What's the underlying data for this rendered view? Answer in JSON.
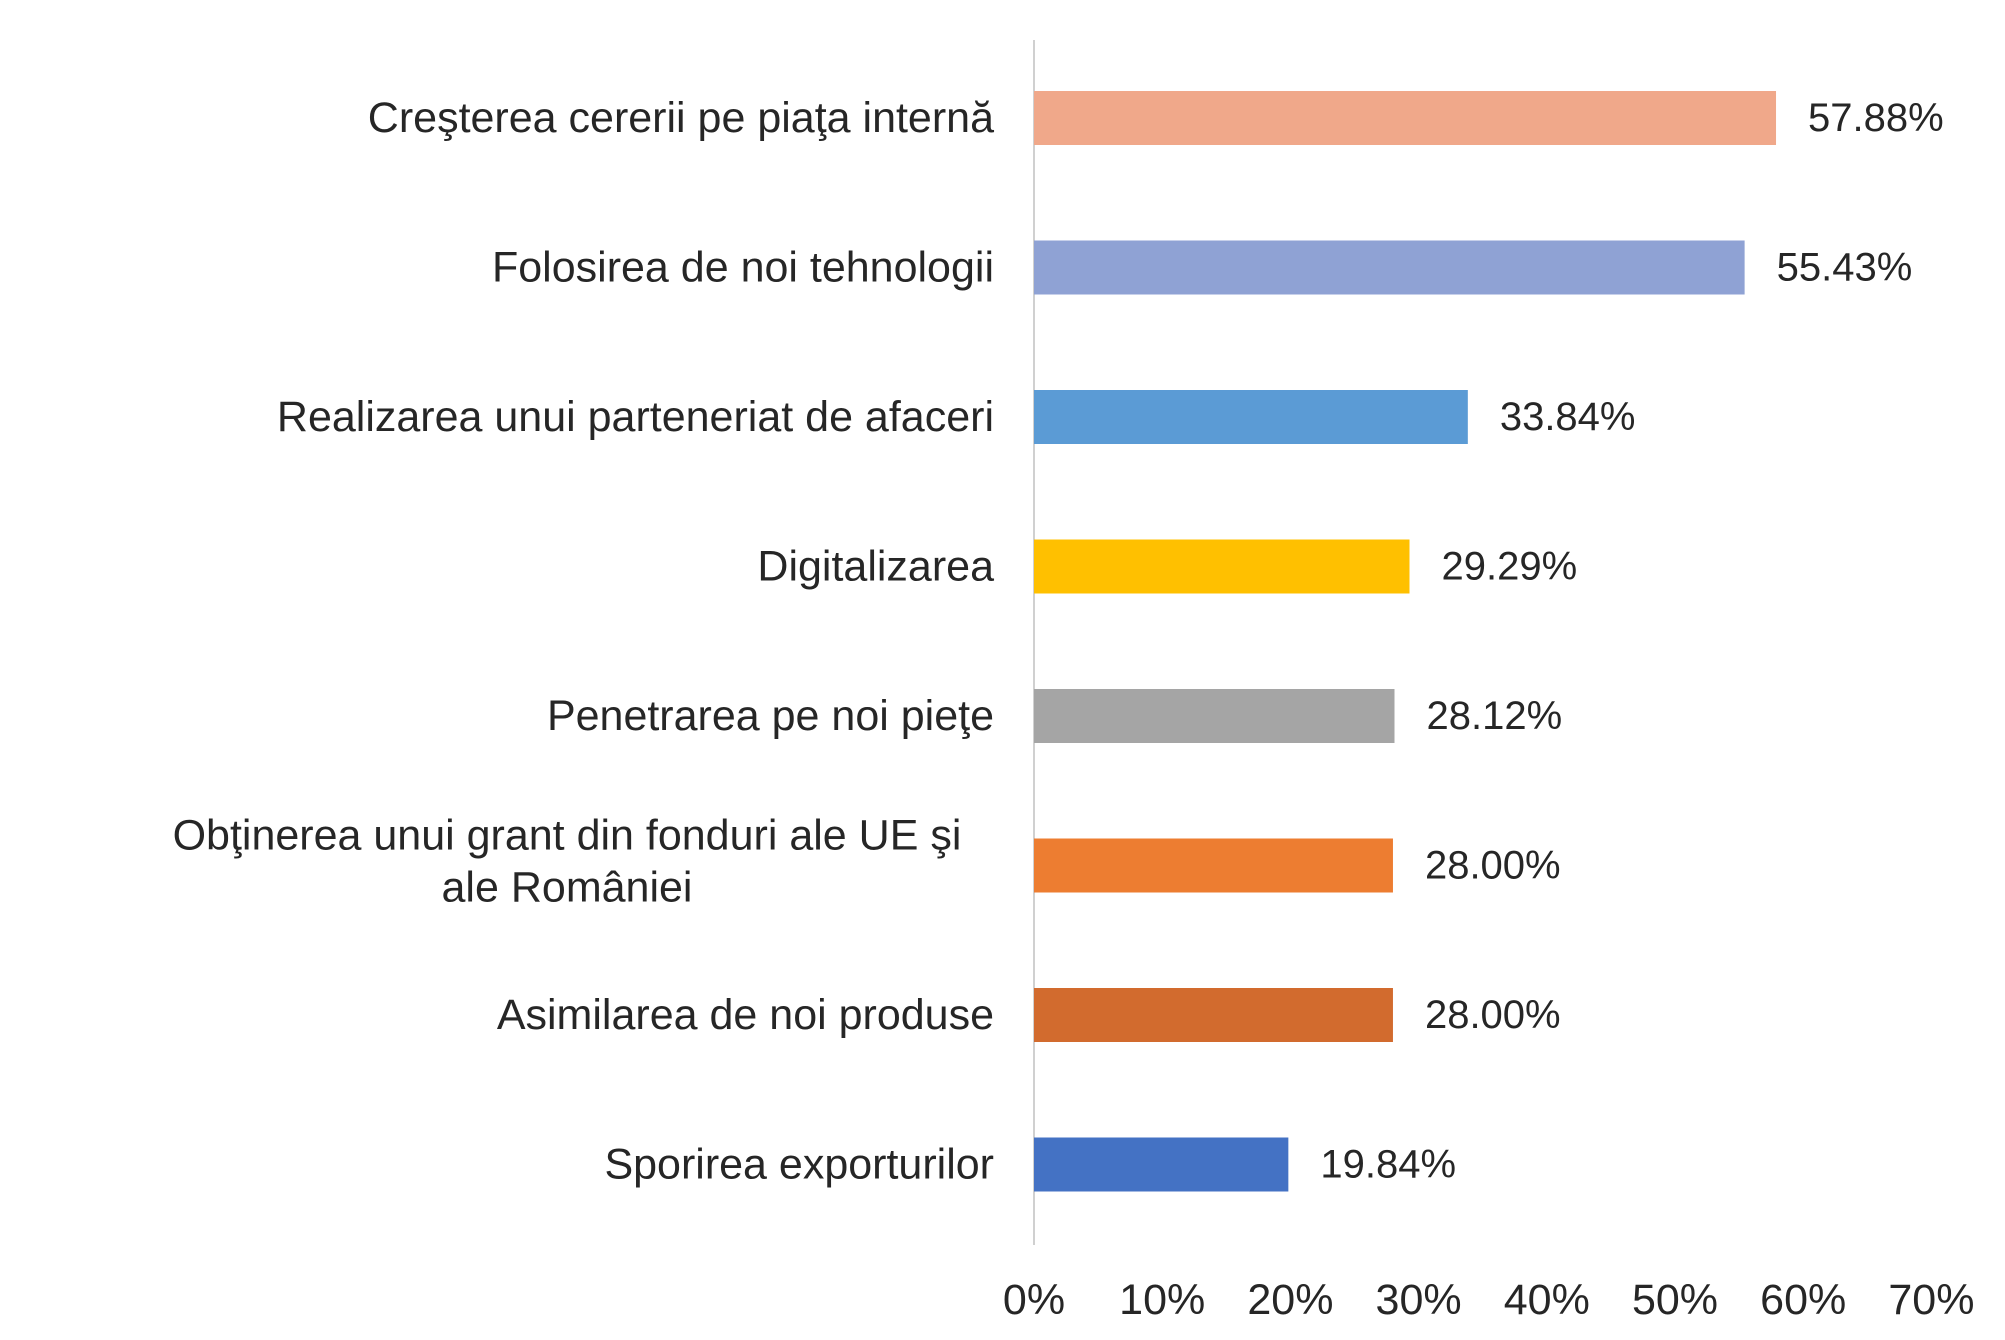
{
  "chart_data": {
    "type": "bar",
    "orientation": "horizontal",
    "title": "",
    "xlabel": "",
    "ylabel": "",
    "categories": [
      "Creşterea cererii pe piaţa internă",
      "Folosirea de noi tehnologii",
      "Realizarea unui parteneriat de afaceri",
      "Digitalizarea",
      "Penetrarea pe noi pieţe",
      "Obţinerea unui grant din fonduri ale UE şi ale României",
      "Asimilarea de noi produse",
      "Sporirea exporturilor"
    ],
    "category_lines": [
      [
        "Creşterea cererii pe piaţa internă"
      ],
      [
        "Folosirea de noi tehnologii"
      ],
      [
        "Realizarea unui parteneriat de afaceri"
      ],
      [
        "Digitalizarea"
      ],
      [
        "Penetrarea pe noi pieţe"
      ],
      [
        "Obţinerea unui grant din fonduri ale UE şi",
        "ale României"
      ],
      [
        "Asimilarea de noi produse"
      ],
      [
        "Sporirea exporturilor"
      ]
    ],
    "values": [
      57.88,
      55.43,
      33.84,
      29.29,
      28.12,
      28.0,
      28.0,
      19.84
    ],
    "value_labels": [
      "57.88%",
      "55.43%",
      "33.84%",
      "29.29%",
      "28.12%",
      "28.00%",
      "28.00%",
      "19.84%"
    ],
    "bar_colors": [
      "#F0A88A",
      "#8FA2D4",
      "#5B9BD5",
      "#FFC000",
      "#A5A5A5",
      "#ED7D31",
      "#D26B2E",
      "#4472C4"
    ],
    "xlim": [
      0,
      70
    ],
    "x_ticks": [
      0,
      10,
      20,
      30,
      40,
      50,
      60,
      70
    ],
    "x_tick_labels": [
      "0%",
      "10%",
      "20%",
      "30%",
      "40%",
      "50%",
      "60%",
      "70%"
    ],
    "grid": false,
    "legend": "none"
  }
}
